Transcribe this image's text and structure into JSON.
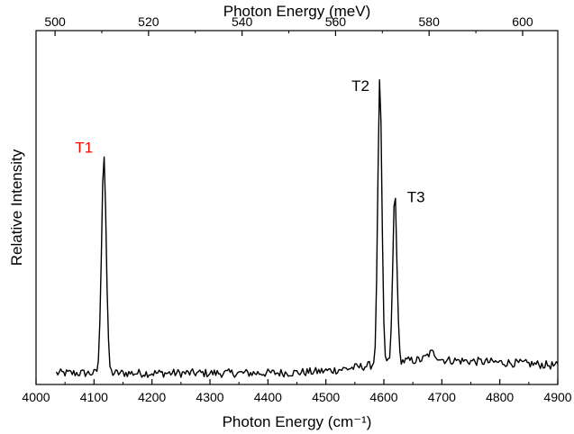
{
  "chart_data": {
    "type": "line",
    "xlabel": "Photon Energy (cm⁻¹)",
    "x2label": "Photon Energy (meV)",
    "ylabel": "Relative Intensity",
    "xlim": [
      4000,
      4900
    ],
    "ylim": [
      0,
      1.0
    ],
    "x_ticks": [
      4000,
      4100,
      4200,
      4300,
      4400,
      4500,
      4600,
      4700,
      4800,
      4900
    ],
    "x2_ticks": [
      500,
      520,
      540,
      560,
      580,
      600
    ],
    "x2_per_x1": 0.123984,
    "grid": false,
    "legend": "none",
    "series": [
      {
        "color": "#000000",
        "x_start": 4035,
        "x_end": 4900,
        "x_step": 2.5,
        "baseline": 0.032,
        "noise": 0.012,
        "baseline_bumps": [
          {
            "x": 4650,
            "width": 120,
            "height": 0.03
          },
          {
            "x": 4830,
            "width": 150,
            "height": 0.025
          }
        ],
        "peaks": [
          {
            "x": 4117,
            "height": 0.62,
            "width": 4
          },
          {
            "x": 4593,
            "height": 0.8,
            "width": 3.5
          },
          {
            "x": 4619,
            "height": 0.48,
            "width": 3.5
          },
          {
            "x": 4683,
            "height": 0.02,
            "width": 8
          }
        ]
      }
    ],
    "annotations": [
      {
        "text": "T1",
        "x": 4098,
        "y": 0.655,
        "color": "#ff0000"
      },
      {
        "text": "T2",
        "x": 4575,
        "y": 0.83,
        "color": "#000000"
      },
      {
        "text": "T3",
        "x": 4640,
        "y": 0.515,
        "color": "#000000"
      }
    ]
  }
}
